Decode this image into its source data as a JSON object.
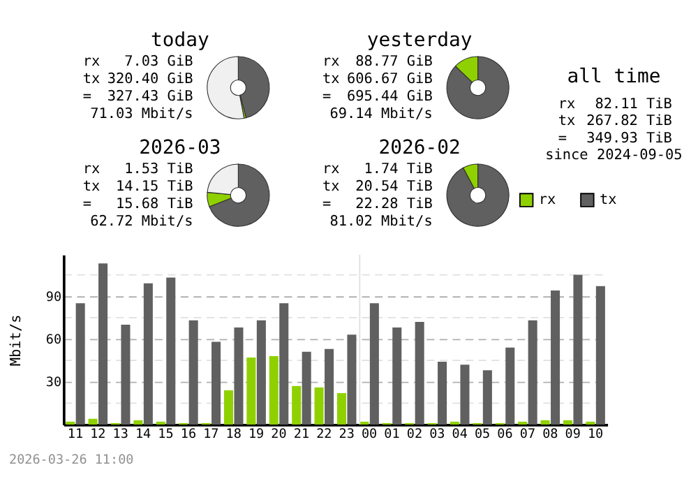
{
  "chart_data": [
    {
      "type": "donut",
      "title": "today",
      "categories": [
        null,
        null,
        null
      ],
      "values": [
        46,
        1,
        53
      ],
      "colors": [
        "#606060",
        "#8fd100",
        "#f0f0f0"
      ],
      "annotations": [
        "rx 7.03 GiB",
        "tx 320.40 GiB",
        "= 327.43 GiB",
        "71.03 Mbit/s"
      ]
    },
    {
      "type": "donut",
      "title": "yesterday",
      "categories": [
        null,
        null
      ],
      "values": [
        87.2,
        12.8
      ],
      "colors": [
        "#606060",
        "#8fd100"
      ],
      "annotations": [
        "rx 88.77 GiB",
        "tx 606.67 GiB",
        "= 695.44 GiB",
        "69.14 Mbit/s"
      ]
    },
    {
      "type": "other",
      "title": "all time",
      "annotations": [
        "rx 82.11 TiB",
        "tx 267.82 TiB",
        "= 349.93 TiB",
        "since 2024-09-05"
      ]
    },
    {
      "type": "donut",
      "title": "2026-03",
      "categories": [
        null,
        null,
        null
      ],
      "values": [
        69,
        7.5,
        23.5
      ],
      "colors": [
        "#606060",
        "#8fd100",
        "#f0f0f0"
      ],
      "annotations": [
        "rx 1.53 TiB",
        "tx 14.15 TiB",
        "= 15.68 TiB",
        "62.72 Mbit/s"
      ]
    },
    {
      "type": "donut",
      "title": "2026-02",
      "categories": [
        null,
        null
      ],
      "values": [
        92.2,
        7.8
      ],
      "colors": [
        "#606060",
        "#8fd100"
      ],
      "annotations": [
        "rx 1.74 TiB",
        "tx 20.54 TiB",
        "= 22.28 TiB",
        "81.02 Mbit/s"
      ]
    },
    {
      "type": "bar",
      "ylabel": "Mbit/s",
      "categories": [
        "11",
        "12",
        "13",
        "14",
        "15",
        "16",
        "17",
        "18",
        "19",
        "20",
        "21",
        "22",
        "23",
        "00",
        "01",
        "02",
        "03",
        "04",
        "05",
        "06",
        "07",
        "08",
        "09",
        "10"
      ],
      "series": [
        {
          "name": "rx",
          "color": "#8fd100",
          "values": [
            2,
            4,
            1,
            3,
            2,
            1,
            1,
            24,
            47,
            48,
            27,
            26,
            22,
            2,
            1,
            1,
            1,
            2,
            1,
            1,
            2,
            3,
            3,
            2
          ]
        },
        {
          "name": "tx",
          "color": "#606060",
          "values": [
            85,
            113,
            70,
            99,
            103,
            73,
            58,
            68,
            73,
            85,
            51,
            53,
            63,
            85,
            68,
            72,
            44,
            42,
            38,
            54,
            73,
            94,
            105,
            97
          ]
        }
      ],
      "ylim": [
        0,
        119
      ],
      "yticks": [
        {
          "value": 15,
          "label": null
        },
        30,
        {
          "value": 45,
          "label": null
        },
        60,
        {
          "value": 75,
          "label": null
        },
        90,
        {
          "value": 105,
          "label": null
        }
      ],
      "grid": "y",
      "legend": "top right",
      "ref_lines": [
        {
          "axis": "x",
          "value": "00",
          "color": "#e0e0e0"
        }
      ],
      "annotations": [
        "2026-03-26 11:00"
      ]
    }
  ]
}
